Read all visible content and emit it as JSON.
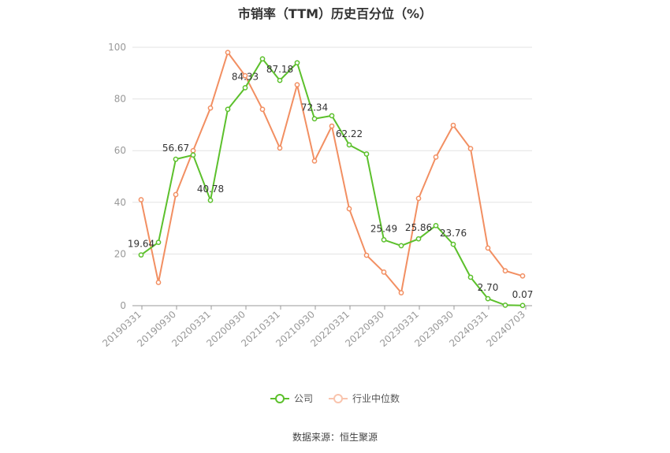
{
  "chart_data": {
    "type": "line",
    "title": "市销率（TTM）历史百分位（%）",
    "source": "数据来源：恒生聚源",
    "ylim": [
      0,
      100
    ],
    "yticks": [
      0,
      20,
      40,
      60,
      80,
      100
    ],
    "x_tick_labels": [
      "20190331",
      "20190930",
      "20200331",
      "20200930",
      "20210331",
      "20210930",
      "20220331",
      "20220930",
      "20230331",
      "20230930",
      "20240331",
      "20240703"
    ],
    "grid": true,
    "legend_position": "bottom",
    "series": [
      {
        "name": "公司",
        "color": "#5cc02c",
        "values": [
          19.64,
          24.5,
          56.67,
          58.3,
          40.78,
          76.0,
          84.33,
          95.5,
          87.18,
          94.0,
          72.34,
          73.5,
          62.22,
          58.7,
          25.49,
          23.2,
          25.86,
          31.0,
          23.76,
          11.0,
          2.7,
          0.2,
          0.07
        ],
        "labels": {
          "0": "19.64",
          "2": "56.67",
          "4": "40.78",
          "6": "84.33",
          "8": "87.18",
          "10": "72.34",
          "12": "62.22",
          "14": "25.49",
          "16": "25.86",
          "18": "23.76",
          "20": "2.70",
          "22": "0.07"
        }
      },
      {
        "name": "行业中位数",
        "color": "#f28f62",
        "values": [
          41.0,
          9.0,
          43.0,
          60.0,
          76.5,
          98.0,
          89.0,
          76.0,
          61.0,
          85.5,
          56.0,
          69.5,
          37.5,
          19.5,
          13.0,
          5.0,
          41.5,
          57.5,
          69.8,
          60.8,
          22.3,
          13.5,
          11.5
        ]
      }
    ]
  }
}
